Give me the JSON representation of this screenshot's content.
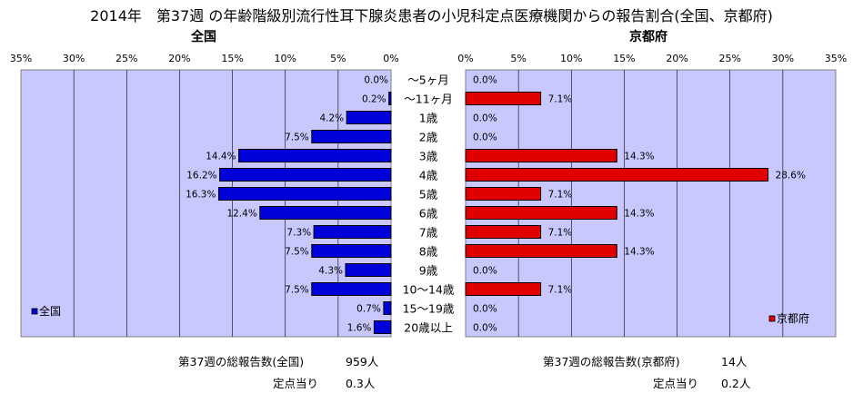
{
  "title": "2014年　第37週 の年齢階級別流行性耳下腺炎患者の小児科定点医療機関からの報告割合(全国、京都府)",
  "chart_data": [
    {
      "type": "bar",
      "title": "全国",
      "orientation": "horizontal",
      "direction": "right-to-left",
      "categories": [
        "～5ヶ月",
        "～11ヶ月",
        "1歳",
        "2歳",
        "3歳",
        "4歳",
        "5歳",
        "6歳",
        "7歳",
        "8歳",
        "9歳",
        "10～14歳",
        "15～19歳",
        "20歳以上"
      ],
      "series": [
        {
          "name": "全国",
          "color": "#0000d8",
          "values": [
            0.0,
            0.2,
            4.2,
            7.5,
            14.4,
            16.2,
            16.3,
            12.4,
            7.3,
            7.5,
            4.3,
            7.5,
            0.7,
            1.6
          ]
        }
      ],
      "data_labels": [
        "0.0%",
        "0.2%",
        "4.2%",
        "7.5%",
        "14.4%",
        "16.2%",
        "16.3%",
        "12.4%",
        "7.3%",
        "7.5%",
        "4.3%",
        "7.5%",
        "0.7%",
        "1.6%"
      ],
      "xlim": [
        0,
        35
      ],
      "ticks": [
        "35%",
        "30%",
        "25%",
        "20%",
        "15%",
        "10%",
        "5%",
        "0%"
      ],
      "grid": true,
      "legend": "bottom-left"
    },
    {
      "type": "bar",
      "title": "京都府",
      "orientation": "horizontal",
      "direction": "left-to-right",
      "categories": [
        "～5ヶ月",
        "～11ヶ月",
        "1歳",
        "2歳",
        "3歳",
        "4歳",
        "5歳",
        "6歳",
        "7歳",
        "8歳",
        "9歳",
        "10～14歳",
        "15～19歳",
        "20歳以上"
      ],
      "series": [
        {
          "name": "京都府",
          "color": "#e00000",
          "values": [
            0.0,
            7.1,
            0.0,
            0.0,
            14.3,
            28.6,
            7.1,
            14.3,
            7.1,
            14.3,
            0.0,
            7.1,
            0.0,
            0.0
          ]
        }
      ],
      "data_labels": [
        "0.0%",
        "7.1%",
        "0.0%",
        "0.0%",
        "14.3%",
        "28.6%",
        "7.1%",
        "14.3%",
        "7.1%",
        "14.3%",
        "0.0%",
        "7.1%",
        "0.0%",
        "0.0%"
      ],
      "xlim": [
        0,
        35
      ],
      "ticks": [
        "0%",
        "5%",
        "10%",
        "15%",
        "20%",
        "25%",
        "30%",
        "35%"
      ],
      "grid": true,
      "legend": "bottom-right"
    }
  ],
  "colors": {
    "plot_background": "#c8c8ff",
    "national_bar": "#0000d8",
    "kyoto_bar": "#e00000"
  },
  "footer": {
    "national_total_label": "第37週の総報告数(全国)",
    "national_total_value": "959人",
    "national_per_label": "定点当り",
    "national_per_value": "0.3人",
    "kyoto_total_label": "第37週の総報告数(京都府)",
    "kyoto_total_value": "14人",
    "kyoto_per_label": "定点当り",
    "kyoto_per_value": "0.2人"
  }
}
